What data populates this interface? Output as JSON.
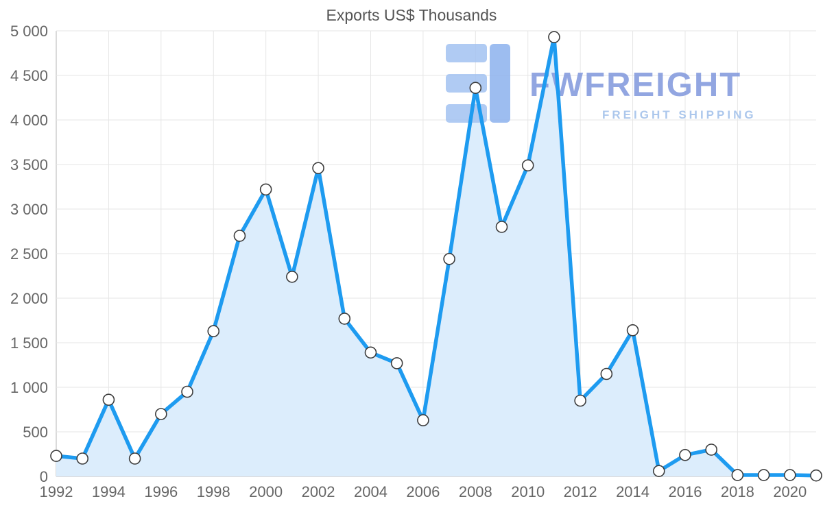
{
  "chart_data": {
    "type": "area",
    "title": "Exports US$ Thousands",
    "xlabel": "",
    "ylabel": "",
    "x": [
      1992,
      1993,
      1994,
      1995,
      1996,
      1997,
      1998,
      1999,
      2000,
      2001,
      2002,
      2003,
      2004,
      2005,
      2006,
      2007,
      2008,
      2009,
      2010,
      2011,
      2012,
      2013,
      2014,
      2015,
      2016,
      2017,
      2018,
      2019,
      2020,
      2021
    ],
    "values": [
      230,
      200,
      860,
      200,
      700,
      950,
      1630,
      2700,
      3220,
      2240,
      3460,
      1770,
      1390,
      1270,
      630,
      2440,
      4360,
      2800,
      3490,
      4930,
      850,
      1150,
      1640,
      60,
      240,
      300,
      15,
      15,
      15,
      10
    ],
    "x_range": [
      1992,
      2021
    ],
    "ylim": [
      0,
      5000
    ],
    "y_ticks": [
      0,
      500,
      1000,
      1500,
      2000,
      2500,
      3000,
      3500,
      4000,
      4500,
      5000
    ],
    "y_tick_labels": [
      "0",
      "500",
      "1 000",
      "1 500",
      "2 000",
      "2 500",
      "3 000",
      "3 500",
      "4 000",
      "4 500",
      "5 000"
    ],
    "x_ticks": [
      1992,
      1994,
      1996,
      1998,
      2000,
      2002,
      2004,
      2006,
      2008,
      2010,
      2012,
      2014,
      2016,
      2018,
      2020
    ],
    "x_tick_labels": [
      "1992",
      "1994",
      "1996",
      "1998",
      "2000",
      "2002",
      "2004",
      "2006",
      "2008",
      "2010",
      "2012",
      "2014",
      "2016",
      "2018",
      "2020"
    ],
    "grid": true,
    "legend": "none",
    "colors": {
      "line": "#1e9bf0",
      "fill": "#dcedfc",
      "marker_fill": "#ffffff",
      "marker_stroke": "#3c3c3c",
      "grid": "#e6e6e6",
      "axis": "#b5b5b5",
      "label": "#666666",
      "title": "#555555"
    }
  },
  "watermark": {
    "title": "FWFREIGHT",
    "subtitle": "FREIGHT SHIPPING",
    "title_color": "#8097dc",
    "subtitle_color": "#a4c2ea",
    "logo_light": "#a3c2f1",
    "logo_dark": "#8db2ee"
  }
}
